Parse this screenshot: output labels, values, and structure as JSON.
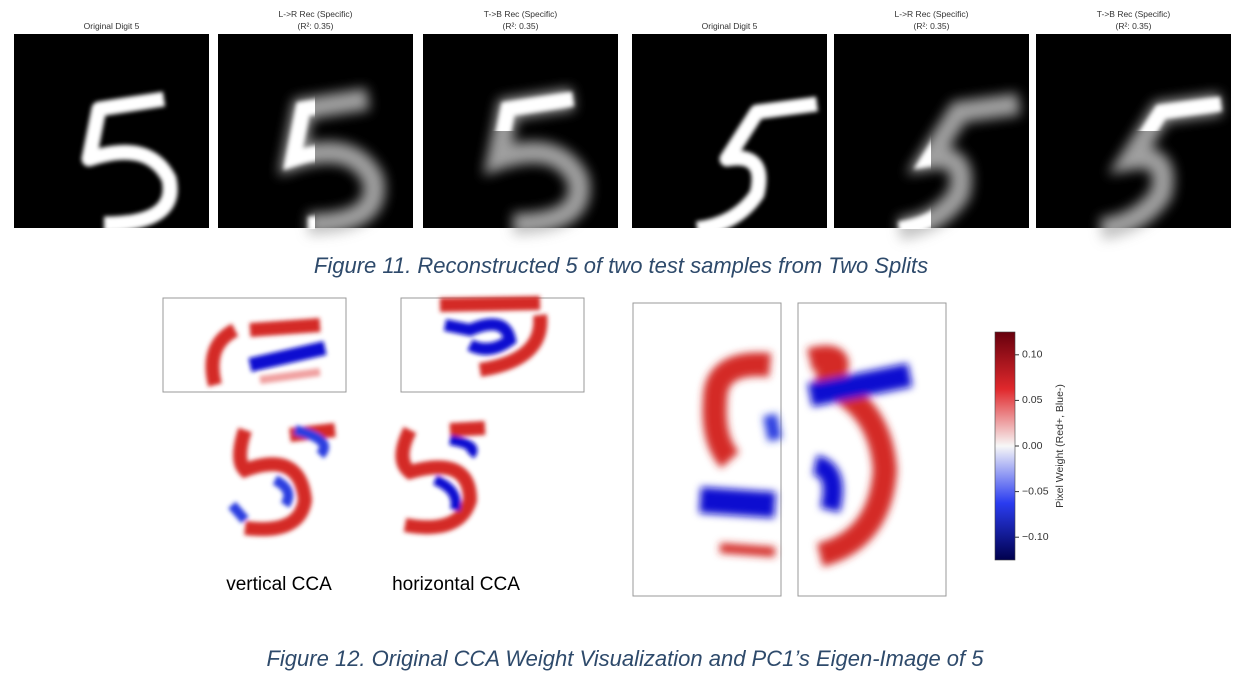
{
  "figure_11": {
    "panels": [
      {
        "title": [
          "Original Digit 5"
        ]
      },
      {
        "title": [
          "L->R Rec (Specific)",
          "(R²: 0.35)"
        ]
      },
      {
        "title": [
          "T->B Rec (Specific)",
          "(R²: 0.35)"
        ]
      },
      {
        "title": [
          "Original Digit 5"
        ]
      },
      {
        "title": [
          "L->R Rec (Specific)",
          "(R²: 0.35)"
        ]
      },
      {
        "title": [
          "T->B Rec (Specific)",
          "(R²: 0.35)"
        ]
      }
    ],
    "caption": "Figure 11. Reconstructed 5 of two test samples from Two Splits"
  },
  "figure_12": {
    "labels": [
      "vertical CCA",
      "horizontal CCA"
    ],
    "colorbar": {
      "label": "Pixel Weight (Red+, Blue-)",
      "ylim": [
        -0.125,
        0.125
      ],
      "yticks": [
        {
          "value": 0.1,
          "label": "0.10"
        },
        {
          "value": 0.05,
          "label": "0.05"
        },
        {
          "value": 0,
          "label": "0.00"
        },
        {
          "value": -0.05,
          "label": "−0.05"
        },
        {
          "value": -0.1,
          "label": "−0.10"
        }
      ]
    },
    "caption": "Figure 12. Original CCA Weight Visualization and PC1’s Eigen-Image of 5"
  }
}
